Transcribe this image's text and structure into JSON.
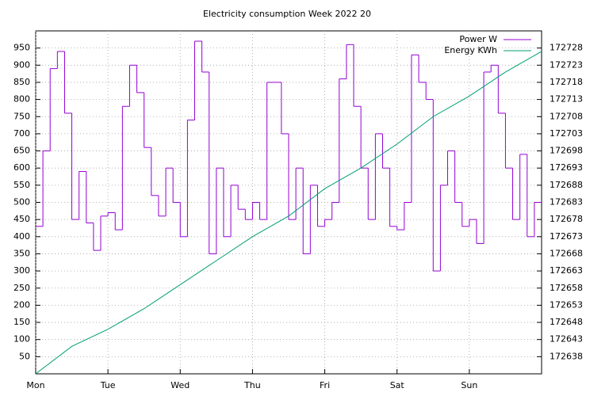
{
  "chart_data": {
    "type": "line",
    "title": "Electricity consumption Week 2022 20",
    "xlim": [
      0,
      7
    ],
    "xticks": [
      {
        "value": 0,
        "label": "Mon"
      },
      {
        "value": 1,
        "label": "Tue"
      },
      {
        "value": 2,
        "label": "Wed"
      },
      {
        "value": 3,
        "label": "Thu"
      },
      {
        "value": 4,
        "label": "Fri"
      },
      {
        "value": 5,
        "label": "Sat"
      },
      {
        "value": 6,
        "label": "Sun"
      }
    ],
    "ylim": [
      0,
      1000
    ],
    "yticks": [
      50,
      100,
      150,
      200,
      250,
      300,
      350,
      400,
      450,
      500,
      550,
      600,
      650,
      700,
      750,
      800,
      850,
      900,
      950
    ],
    "y2lim": [
      172633,
      172733
    ],
    "y2ticks": [
      172638,
      172643,
      172648,
      172653,
      172658,
      172663,
      172668,
      172673,
      172678,
      172683,
      172688,
      172693,
      172698,
      172703,
      172708,
      172713,
      172718,
      172723,
      172728
    ],
    "grid": true,
    "legend": "top-right",
    "series": [
      {
        "name": "Power W",
        "color": "#9400d3",
        "step": true,
        "x": [
          0,
          0.1,
          0.2,
          0.3,
          0.4,
          0.5,
          0.6,
          0.7,
          0.8,
          0.9,
          1,
          1.1,
          1.2,
          1.3,
          1.4,
          1.5,
          1.6,
          1.7,
          1.8,
          1.9,
          2,
          2.1,
          2.2,
          2.3,
          2.4,
          2.5,
          2.6,
          2.7,
          2.8,
          2.9,
          3,
          3.1,
          3.2,
          3.3,
          3.4,
          3.5,
          3.6,
          3.7,
          3.8,
          3.9,
          4,
          4.1,
          4.2,
          4.3,
          4.4,
          4.5,
          4.6,
          4.7,
          4.8,
          4.9,
          5,
          5.1,
          5.2,
          5.3,
          5.4,
          5.5,
          5.6,
          5.7,
          5.8,
          5.9,
          6,
          6.1,
          6.2,
          6.3,
          6.4,
          6.5,
          6.6,
          6.7,
          6.8,
          6.9
        ],
        "values": [
          430,
          650,
          890,
          940,
          760,
          450,
          590,
          440,
          360,
          460,
          470,
          420,
          780,
          900,
          820,
          660,
          520,
          460,
          600,
          500,
          400,
          740,
          970,
          880,
          350,
          600,
          400,
          550,
          480,
          450,
          500,
          450,
          850,
          850,
          700,
          450,
          600,
          350,
          550,
          430,
          450,
          500,
          860,
          960,
          780,
          600,
          450,
          700,
          600,
          430,
          420,
          500,
          930,
          850,
          800,
          300,
          550,
          650,
          500,
          430,
          450,
          380,
          880,
          900,
          760,
          600,
          450,
          640,
          400,
          500
        ]
      },
      {
        "name": "Energy KWh",
        "color": "#009e73",
        "axis": "y2",
        "x": [
          0,
          0.5,
          1,
          1.5,
          2,
          2.5,
          3,
          3.5,
          4,
          4.5,
          5,
          5.5,
          6,
          6.5,
          7
        ],
        "values": [
          172633,
          172641,
          172646,
          172652,
          172659,
          172666,
          172673,
          172679,
          172687,
          172693,
          172700,
          172708,
          172714,
          172721,
          172727
        ]
      }
    ]
  }
}
